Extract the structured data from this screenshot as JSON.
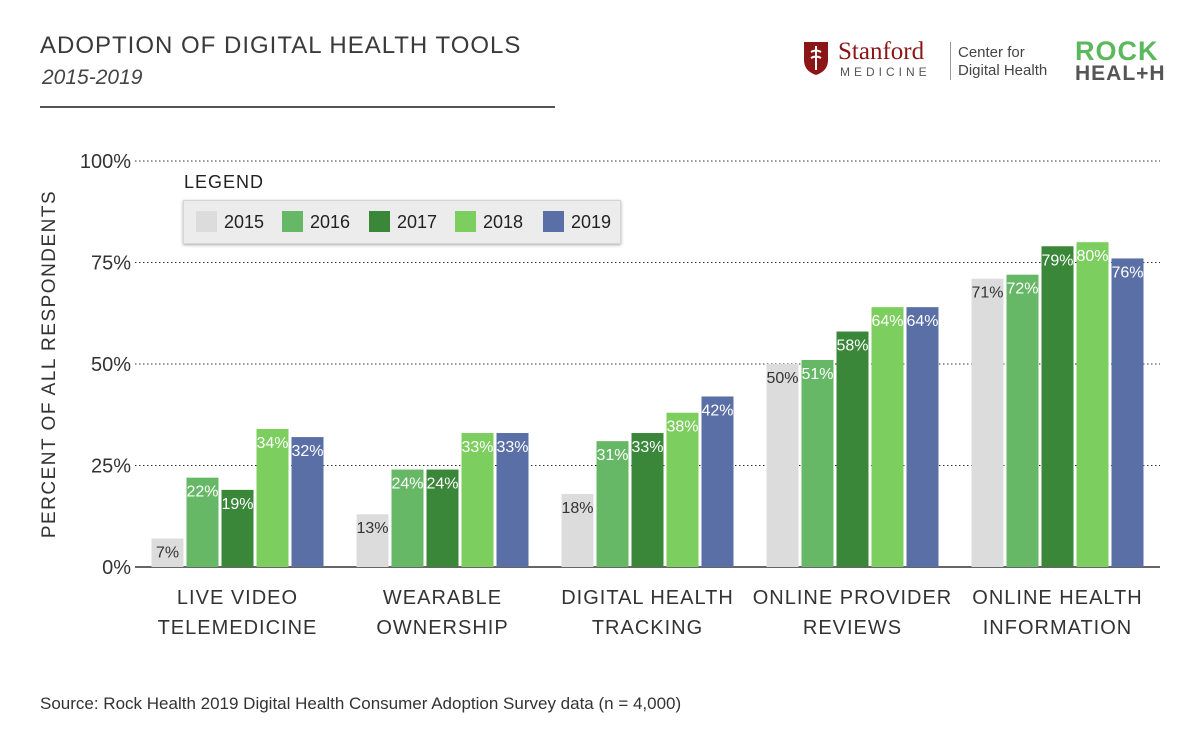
{
  "header": {
    "title": "ADOPTION OF DIGITAL HEALTH TOOLS",
    "subtitle": "2015-2019"
  },
  "logos": {
    "stanford_word": "Stanford",
    "stanford_medicine": "MEDICINE",
    "center_line1": "Center for",
    "center_line2": "Digital Health",
    "rock_line1": "ROCK",
    "rock_line2": "HEAL+H",
    "stanford_color": "#8c1515",
    "rock_green": "#5cb85c"
  },
  "footer": {
    "source": "Source: Rock Health 2019 Digital Health Consumer Adoption Survey data (n = 4,000)"
  },
  "chart_data": {
    "type": "bar",
    "ylabel": "PERCENT OF ALL RESPONDENTS",
    "ylim": [
      0,
      100
    ],
    "yticks": [
      0,
      25,
      50,
      75,
      100
    ],
    "ytick_labels": [
      "0%",
      "25%",
      "50%",
      "75%",
      "100%"
    ],
    "grid": true,
    "legend_title": "LEGEND",
    "legend_position": "top-left",
    "categories": [
      [
        "LIVE VIDEO",
        "TELEMEDICINE"
      ],
      [
        "WEARABLE",
        "OWNERSHIP"
      ],
      [
        "DIGITAL HEALTH",
        "TRACKING"
      ],
      [
        "ONLINE PROVIDER",
        "REVIEWS"
      ],
      [
        "ONLINE HEALTH",
        "INFORMATION"
      ]
    ],
    "series": [
      {
        "name": "2015",
        "color": "#dcdcdc",
        "label_color": "#333333",
        "values": [
          7,
          13,
          18,
          50,
          71
        ]
      },
      {
        "name": "2016",
        "color": "#66b866",
        "label_color": "#ffffff",
        "values": [
          22,
          24,
          31,
          51,
          72
        ]
      },
      {
        "name": "2017",
        "color": "#3a873a",
        "label_color": "#ffffff",
        "values": [
          19,
          24,
          33,
          58,
          79
        ]
      },
      {
        "name": "2018",
        "color": "#7cce5e",
        "label_color": "#ffffff",
        "values": [
          34,
          33,
          38,
          64,
          80
        ]
      },
      {
        "name": "2019",
        "color": "#5a6fa5",
        "label_color": "#ffffff",
        "values": [
          32,
          33,
          42,
          64,
          76
        ]
      }
    ]
  }
}
